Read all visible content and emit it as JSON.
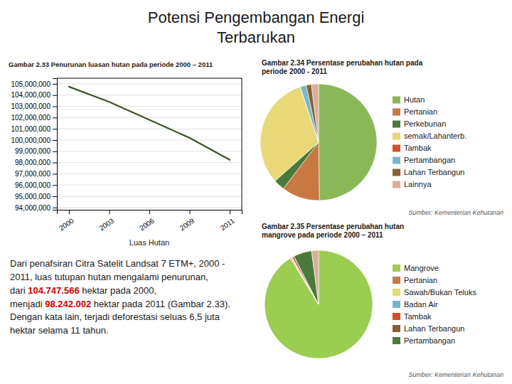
{
  "title": "Potensi Pengembangan Energi\nTerbarukan",
  "annotations": [
    {
      "text": "Dari penafsiran Citra Satelit Landsat 7 ETM+, 2000 - 2011, luas tutupan hutan mengalami penurunan, dari"
    },
    {
      "text": "104.747.566",
      "color": "#cc0000"
    },
    {
      "text": "hektar pada 2000, menjadi"
    },
    {
      "text": "98.242.002",
      "color": "#cc0000"
    },
    {
      "text": "hektar pada 2011 (Gambar 2.33). Dengan kata lain, terjadi deforestasi"
    },
    {
      "text": "seluas 6,5 juta hektar selama 11"
    },
    {
      "text": "tahun."
    }
  ],
  "chart_data": [
    {
      "type": "line",
      "title": "Gambar 2.33 Penurunan luasan hutan pada periode 2000 – 2011",
      "x_label": "Luas Hutan",
      "categories": [
        "2000",
        "2003",
        "2006",
        "2009",
        "2011"
      ],
      "values": [
        104747566,
        103400000,
        101800000,
        100200000,
        98242002
      ],
      "color": "#3a5525",
      "ylim": [
        93800000,
        105500000
      ],
      "yticks": [
        {
          "value": 105000000,
          "label": "105,000,000"
        },
        {
          "value": 104000000,
          "label": "104,000,000"
        },
        {
          "value": 103000000,
          "label": "103,000,000"
        },
        {
          "value": 102000000,
          "label": "102,000,000"
        },
        {
          "value": 101000000,
          "label": "101,000,000"
        },
        {
          "value": 100000000,
          "label": "100,000,000"
        },
        {
          "value": 99000000,
          "label": "99,000,000"
        },
        {
          "value": 98000000,
          "label": "98,000,000"
        },
        {
          "value": 97000000,
          "label": "97,000,000"
        },
        {
          "value": 96000000,
          "label": "96,000,000"
        },
        {
          "value": 95000000,
          "label": "95,000,000"
        },
        {
          "value": 94000000,
          "label": "94,000,000"
        }
      ],
      "grid": true
    },
    {
      "type": "pie",
      "title": "Gambar 2.34  Persentase perubahan hutan pada\nperiode 2000 - 2011",
      "categories": [
        "Hutan",
        "Pertanian",
        "Perkebunan",
        "semak/Lahanterb.",
        "Tambak",
        "Pertambangan",
        "Lahan Terbangun",
        "Lainnya"
      ],
      "values": [
        49.78,
        10.54,
        3.1,
        31.39,
        0.11,
        1.67,
        1.43,
        1.98
      ],
      "colors": [
        "#8ab858",
        "#c87941",
        "#4a7a3a",
        "#e8d878",
        "#d05030",
        "#78b8c8",
        "#8a6030",
        "#d8b098"
      ],
      "legend": "right",
      "annotations": [
        "Sumber: Kementerian Kehutanan"
      ]
    },
    {
      "type": "pie",
      "title": "Gambar 2.35  Persentase perubahan hutan\nmangrove pada periode 2000 – 2011",
      "categories": [
        "Mangrove",
        "Pertanian",
        "Sawah/Bukan Teluks",
        "Badan Air",
        "Tambak",
        "Lahan Terbangun",
        "Pertambangan",
        null
      ],
      "values": [
        91.2,
        0.28,
        0.25,
        0.14,
        0.55,
        0.06,
        5.44,
        2.08
      ],
      "colors": [
        "#9acd50",
        "#c87941",
        "#e8d878",
        "#70b8c8",
        "#d05030",
        "#8a6030",
        "#4a7a3a",
        "#d8b098"
      ],
      "legend": "right",
      "annotations": [
        "Sumber: Kementerian Kehutanan"
      ]
    }
  ]
}
